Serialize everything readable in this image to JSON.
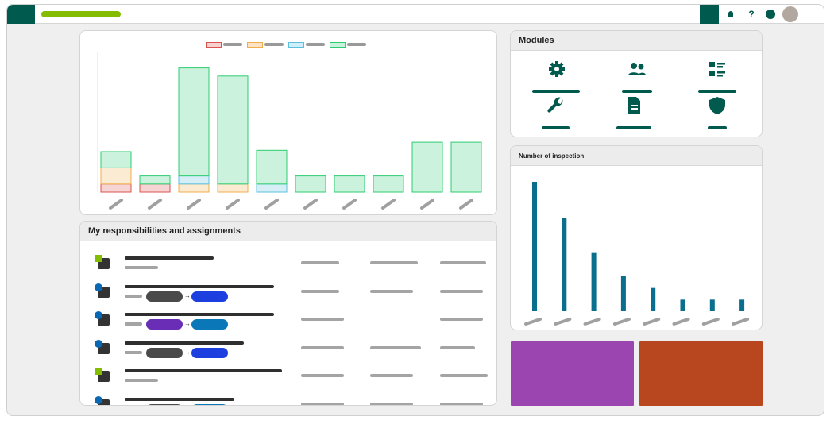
{
  "topbar": {
    "icons": [
      "bell-icon",
      "help-icon",
      "status-dot-icon",
      "user-avatar"
    ],
    "help_label": "?",
    "colors": {
      "brand_dark": "#005a4e",
      "brand_green": "#84bd00"
    }
  },
  "responsibilities": {
    "title": "My responsibilities and assignments",
    "rows": [
      {
        "type": "green",
        "pills": []
      },
      {
        "type": "blue",
        "pills": [
          "#4a4a4a",
          "#1e3fe0"
        ]
      },
      {
        "type": "blue",
        "pills": [
          "#6a2db5",
          "#0a78b8"
        ]
      },
      {
        "type": "blue",
        "pills": [
          "#4a4a4a",
          "#1e3fe0"
        ]
      },
      {
        "type": "green",
        "pills": []
      },
      {
        "type": "blue",
        "pills": [
          "#4a4a4a",
          "#0a78b8"
        ]
      }
    ],
    "arrow": "→"
  },
  "modules": {
    "title": "Modules",
    "items": [
      {
        "icon": "gear-icon"
      },
      {
        "icon": "users-icon"
      },
      {
        "icon": "checklist-icon"
      },
      {
        "icon": "wrench-icon"
      },
      {
        "icon": "document-icon"
      },
      {
        "icon": "shield-icon"
      }
    ]
  },
  "inspections": {
    "title": "Number of inspection"
  },
  "tiles": [
    {
      "color": "#9b45b0"
    },
    {
      "color": "#b8461e"
    }
  ],
  "chart_data": [
    {
      "type": "bar",
      "stacked": true,
      "series": [
        {
          "color": "#d9534f",
          "values": [
            6,
            6,
            0,
            0,
            0,
            0,
            0,
            0,
            0,
            0
          ]
        },
        {
          "color": "#f0ad4e",
          "values": [
            12,
            0,
            6,
            6,
            0,
            0,
            0,
            0,
            0,
            0
          ]
        },
        {
          "color": "#5bc0de",
          "values": [
            0,
            0,
            6,
            0,
            6,
            0,
            0,
            0,
            0,
            0
          ]
        },
        {
          "color": "#2ecc71",
          "values": [
            12,
            6,
            80,
            80,
            25,
            12,
            12,
            12,
            37,
            37
          ]
        }
      ],
      "legend_position": "top-center",
      "grid": false
    },
    {
      "type": "bar",
      "values": [
        100,
        72,
        45,
        27,
        18,
        9,
        9,
        9
      ],
      "color": "#0a6e8e",
      "grid": false
    }
  ]
}
